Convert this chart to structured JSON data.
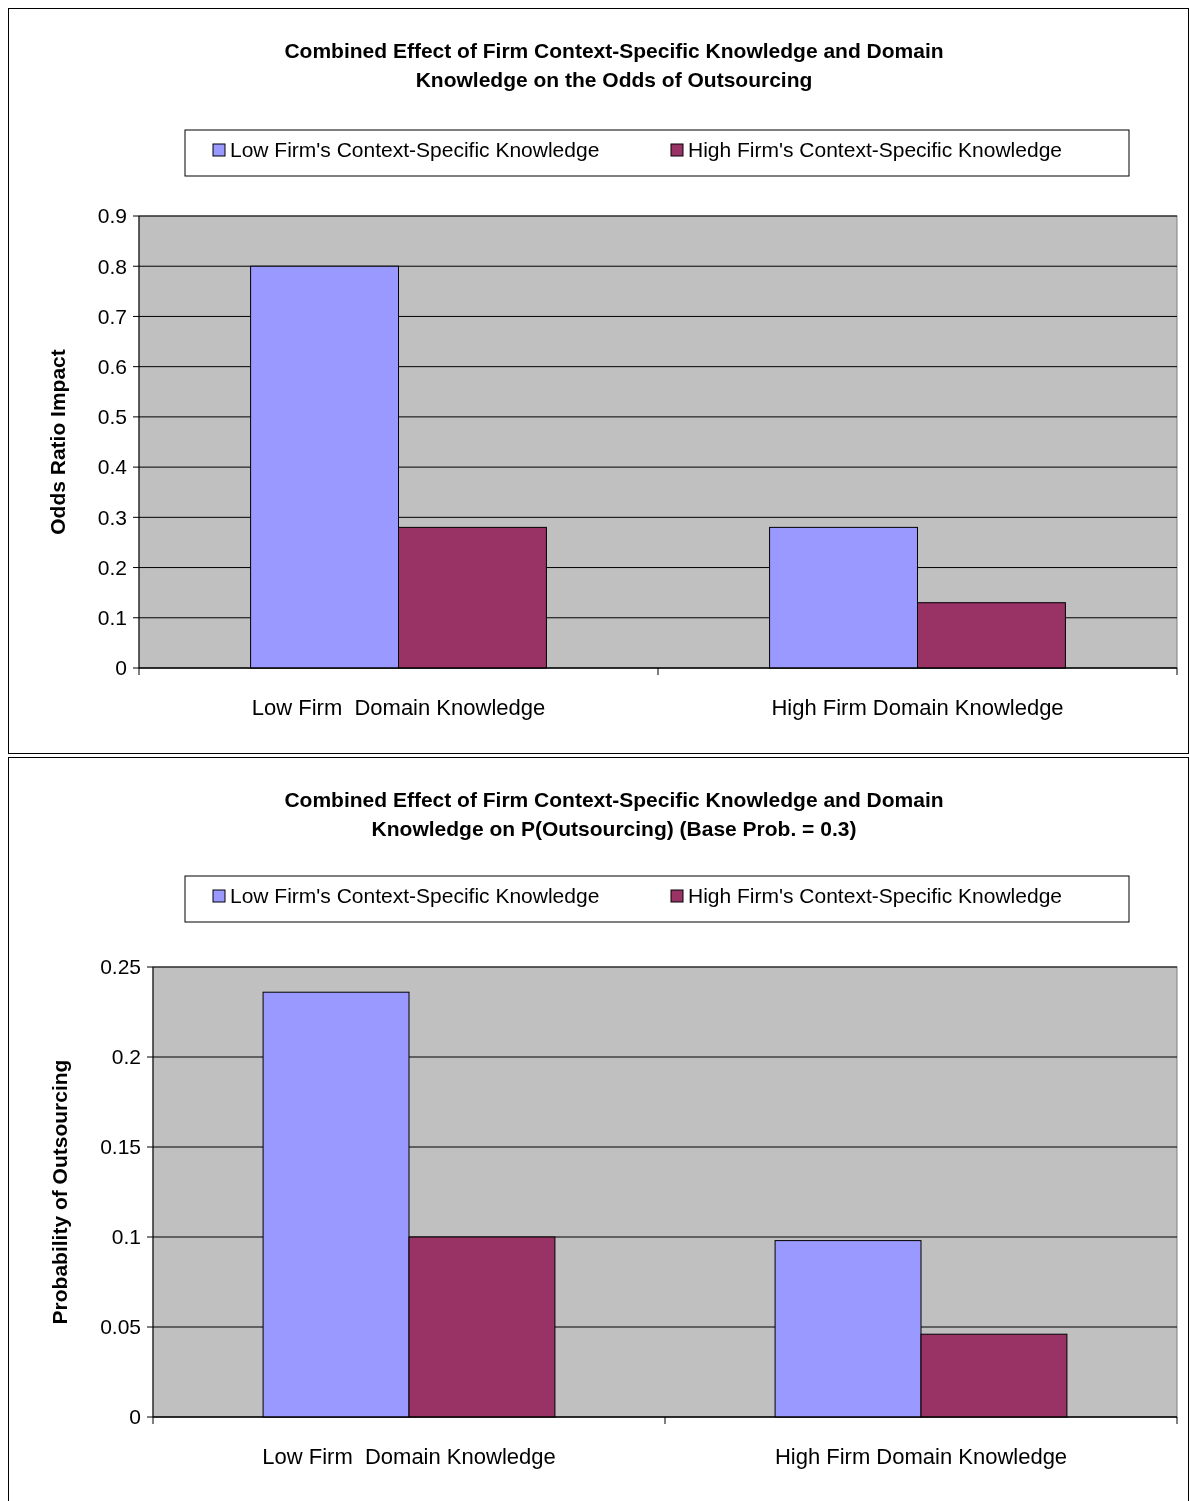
{
  "chart_data": [
    {
      "type": "bar",
      "title": "Combined Effect of Firm Context-Specific Knowledge and Domain Knowledge on the Odds of Outsourcing",
      "ylabel": "Odds Ratio Impact",
      "categories": [
        "Low Firm  Domain Knowledge",
        "High Firm Domain Knowledge"
      ],
      "series": [
        {
          "name": "Low Firm's Context-Specific Knowledge",
          "color": "#9999ff",
          "values": [
            0.8,
            0.28
          ]
        },
        {
          "name": "High Firm's Context-Specific Knowledge",
          "color": "#993366",
          "values": [
            0.28,
            0.13
          ]
        }
      ],
      "ylim": [
        0,
        0.9
      ],
      "yticks": [
        0,
        0.1,
        0.2,
        0.3,
        0.4,
        0.5,
        0.6,
        0.7,
        0.8,
        0.9
      ],
      "grid": "y",
      "legend": "top"
    },
    {
      "type": "bar",
      "title": "Combined Effect of Firm Context-Specific Knowledge and Domain Knowledge on P(Outsourcing)  (Base Prob. = 0.3)",
      "ylabel": "Probability of Outsourcing",
      "categories": [
        "Low Firm  Domain Knowledge",
        "High Firm Domain Knowledge"
      ],
      "series": [
        {
          "name": "Low Firm's Context-Specific Knowledge",
          "color": "#9999ff",
          "values": [
            0.236,
            0.098
          ]
        },
        {
          "name": "High Firm's Context-Specific Knowledge",
          "color": "#993366",
          "values": [
            0.1,
            0.046
          ]
        }
      ],
      "ylim": [
        0,
        0.25
      ],
      "yticks": [
        0,
        0.05,
        0.1,
        0.15,
        0.2,
        0.25
      ],
      "grid": "y",
      "legend": "top"
    }
  ]
}
